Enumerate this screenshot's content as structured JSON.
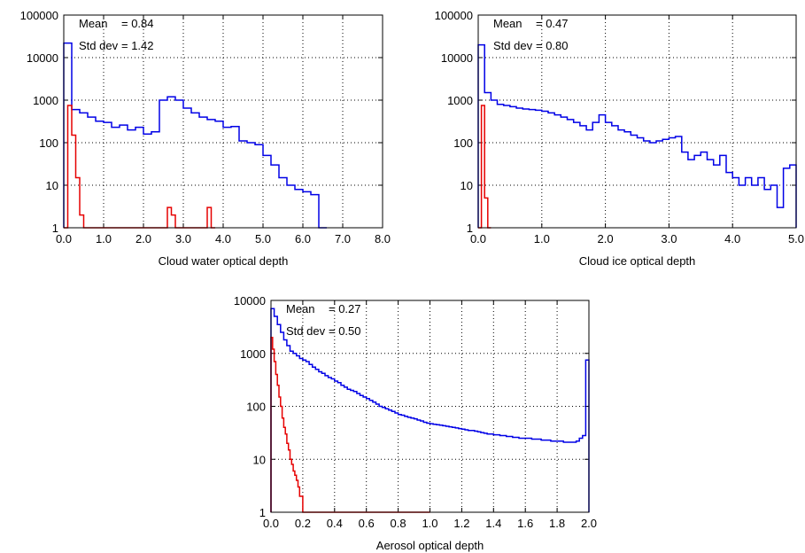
{
  "colors": {
    "total": "#0000e6",
    "secondary": "#e60000",
    "grid": "#000000",
    "frame": "#000000"
  },
  "chart_data": [
    {
      "type": "histogram",
      "xlabel": "Cloud water optical depth",
      "x_ticks": [
        "0.0",
        "1.0",
        "2.0",
        "3.0",
        "4.0",
        "5.0",
        "6.0",
        "7.0",
        "8.0"
      ],
      "y_ticks": [
        "1",
        "10",
        "100",
        "1000",
        "10000",
        "100000"
      ],
      "xlim": [
        0,
        8
      ],
      "ylim": [
        1,
        100000
      ],
      "yscale": "log",
      "grid": true,
      "stats": {
        "mean_label": "Mean",
        "mean_value": "= 0.84",
        "std_label": "Std dev",
        "std_value": "= 1.42"
      },
      "series": [
        {
          "color": "blue",
          "bin_width": 0.2,
          "values": [
            22000,
            600,
            500,
            400,
            320,
            300,
            230,
            260,
            200,
            230,
            160,
            180,
            1000,
            1200,
            1000,
            650,
            500,
            400,
            350,
            320,
            230,
            240,
            110,
            100,
            90,
            50,
            30,
            15,
            10,
            8,
            7,
            6,
            1
          ]
        },
        {
          "color": "red",
          "bin_width": 0.1,
          "values": [
            0,
            750,
            150,
            15,
            2,
            0,
            0,
            0,
            0,
            0,
            0,
            0,
            0,
            0,
            0,
            0,
            0,
            0,
            0,
            0,
            0,
            0,
            0,
            0,
            0,
            0,
            3,
            2,
            0,
            0,
            0,
            0,
            0,
            0,
            0,
            0,
            3,
            0
          ]
        }
      ]
    },
    {
      "type": "histogram",
      "xlabel": "Cloud ice optical depth",
      "x_ticks": [
        "0.0",
        "1.0",
        "2.0",
        "3.0",
        "4.0",
        "5.0"
      ],
      "y_ticks": [
        "1",
        "10",
        "100",
        "1000",
        "10000",
        "100000"
      ],
      "xlim": [
        0,
        5
      ],
      "ylim": [
        1,
        100000
      ],
      "yscale": "log",
      "grid": true,
      "stats": {
        "mean_label": "Mean",
        "mean_value": "= 0.47",
        "std_label": "Std dev",
        "std_value": "= 0.80"
      },
      "series": [
        {
          "color": "blue",
          "bin_width": 0.1,
          "values": [
            20000,
            1500,
            1000,
            800,
            750,
            700,
            650,
            620,
            600,
            580,
            550,
            500,
            450,
            400,
            350,
            300,
            250,
            200,
            300,
            450,
            300,
            250,
            200,
            180,
            150,
            130,
            110,
            100,
            110,
            120,
            130,
            140,
            60,
            40,
            50,
            60,
            40,
            30,
            50,
            20,
            15,
            10,
            15,
            10,
            15,
            8,
            10,
            3,
            25,
            30
          ]
        },
        {
          "color": "red",
          "bin_width": 0.05,
          "values": [
            0,
            750,
            5,
            1
          ]
        }
      ]
    },
    {
      "type": "histogram",
      "xlabel": "Aerosol optical depth",
      "x_ticks": [
        "0.0",
        "0.2",
        "0.4",
        "0.6",
        "0.8",
        "1.0",
        "1.2",
        "1.4",
        "1.6",
        "1.8",
        "2.0"
      ],
      "y_ticks": [
        "1",
        "10",
        "100",
        "1000",
        "10000"
      ],
      "xlim": [
        0,
        2
      ],
      "ylim": [
        1,
        10000
      ],
      "yscale": "log",
      "grid": true,
      "stats": {
        "mean_label": "Mean",
        "mean_value": "= 0.27",
        "std_label": "Std dev",
        "std_value": "= 0.50"
      },
      "series": [
        {
          "color": "blue",
          "bin_width": 0.02,
          "values": [
            7000,
            5000,
            3500,
            2500,
            1800,
            1400,
            1100,
            1000,
            900,
            800,
            750,
            700,
            620,
            550,
            500,
            450,
            420,
            380,
            350,
            330,
            300,
            280,
            250,
            230,
            210,
            200,
            190,
            175,
            160,
            150,
            140,
            130,
            120,
            110,
            100,
            95,
            90,
            85,
            80,
            75,
            70,
            68,
            65,
            62,
            60,
            58,
            55,
            53,
            50,
            48,
            47,
            46,
            45,
            44,
            43,
            42,
            41,
            40,
            39,
            38,
            37,
            36,
            35,
            35,
            34,
            33,
            32,
            31,
            30,
            30,
            29,
            29,
            28,
            28,
            27,
            27,
            26,
            26,
            25,
            25,
            25,
            25,
            24,
            24,
            24,
            23,
            23,
            23,
            22,
            22,
            22,
            22,
            21,
            21,
            21,
            21,
            22,
            25,
            28,
            750
          ]
        },
        {
          "color": "red",
          "bin_width": 0.01,
          "values": [
            2000,
            1200,
            700,
            400,
            250,
            150,
            100,
            60,
            40,
            30,
            20,
            15,
            10,
            8,
            6,
            5,
            4,
            3,
            2,
            2,
            1,
            1,
            1,
            0,
            0,
            0,
            0,
            0,
            0,
            0,
            0,
            0,
            0,
            0,
            0,
            0,
            0,
            0,
            0,
            0,
            0,
            0,
            0,
            0,
            0,
            0,
            0,
            0,
            0,
            0,
            0,
            0,
            0,
            0,
            0,
            0,
            0,
            0,
            0,
            0,
            0,
            0,
            0,
            0,
            0,
            0,
            0,
            0,
            0,
            0,
            0,
            0,
            0,
            0,
            0,
            0,
            0,
            0,
            0,
            0,
            0,
            0,
            0,
            0,
            0,
            0,
            0,
            0,
            0,
            0,
            0,
            0,
            0,
            0,
            0,
            0,
            0,
            0,
            0,
            0
          ]
        }
      ]
    }
  ]
}
